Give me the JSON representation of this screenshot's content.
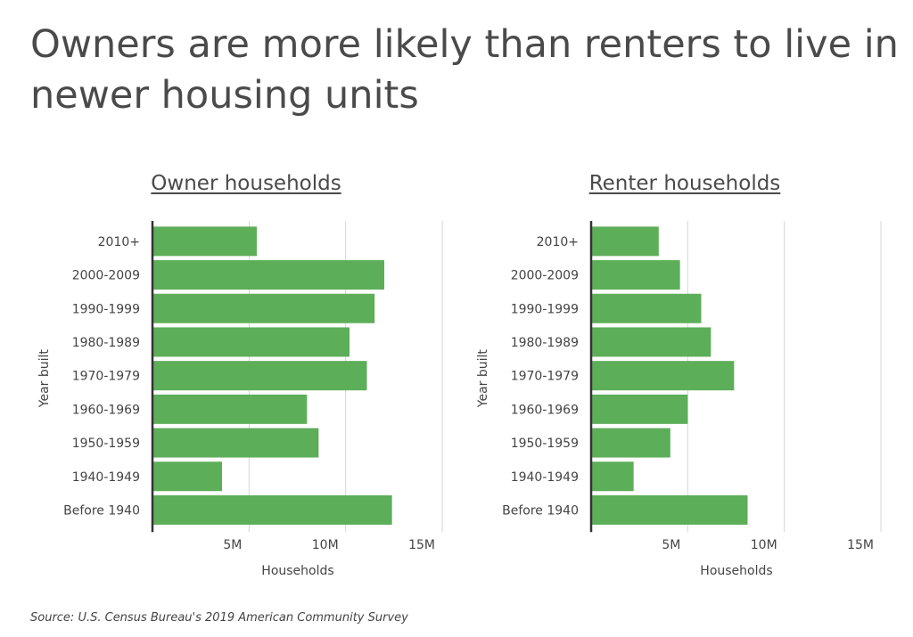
{
  "title": "Owners are more likely than renters to live in newer housing units",
  "source": "Source:  U.S. Census Bureau's 2019 American Community Survey",
  "colors": {
    "bar": "#5dae59",
    "axis": "#333333",
    "grid": "#d6d6d6",
    "text": "#444444"
  },
  "chart_data": [
    {
      "type": "bar",
      "orientation": "horizontal",
      "title": "Owner households",
      "xlabel": "Households",
      "ylabel": "Year built",
      "categories": [
        "2010+",
        "2000-2009",
        "1990-1999",
        "1980-1989",
        "1970-1979",
        "1960-1969",
        "1950-1959",
        "1940-1949",
        "Before 1940"
      ],
      "values": [
        5.4,
        12.0,
        11.5,
        10.2,
        11.1,
        8.0,
        8.6,
        3.6,
        12.4
      ],
      "units": "millions",
      "xticks": [
        5,
        10,
        15
      ],
      "xtick_labels": [
        "5M",
        "10M",
        "15M"
      ],
      "xlim": [
        0,
        15
      ],
      "grid": true
    },
    {
      "type": "bar",
      "orientation": "horizontal",
      "title": "Renter households",
      "xlabel": "Households",
      "ylabel": "Year built",
      "categories": [
        "2010+",
        "2000-2009",
        "1990-1999",
        "1980-1989",
        "1970-1979",
        "1960-1969",
        "1950-1959",
        "1940-1949",
        "Before 1940"
      ],
      "values": [
        3.5,
        4.6,
        5.7,
        6.2,
        7.4,
        5.0,
        4.1,
        2.2,
        8.1
      ],
      "units": "millions",
      "xticks": [
        5,
        10,
        15
      ],
      "xtick_labels": [
        "5M",
        "10M",
        "15M"
      ],
      "xlim": [
        0,
        15
      ],
      "grid": true
    }
  ]
}
